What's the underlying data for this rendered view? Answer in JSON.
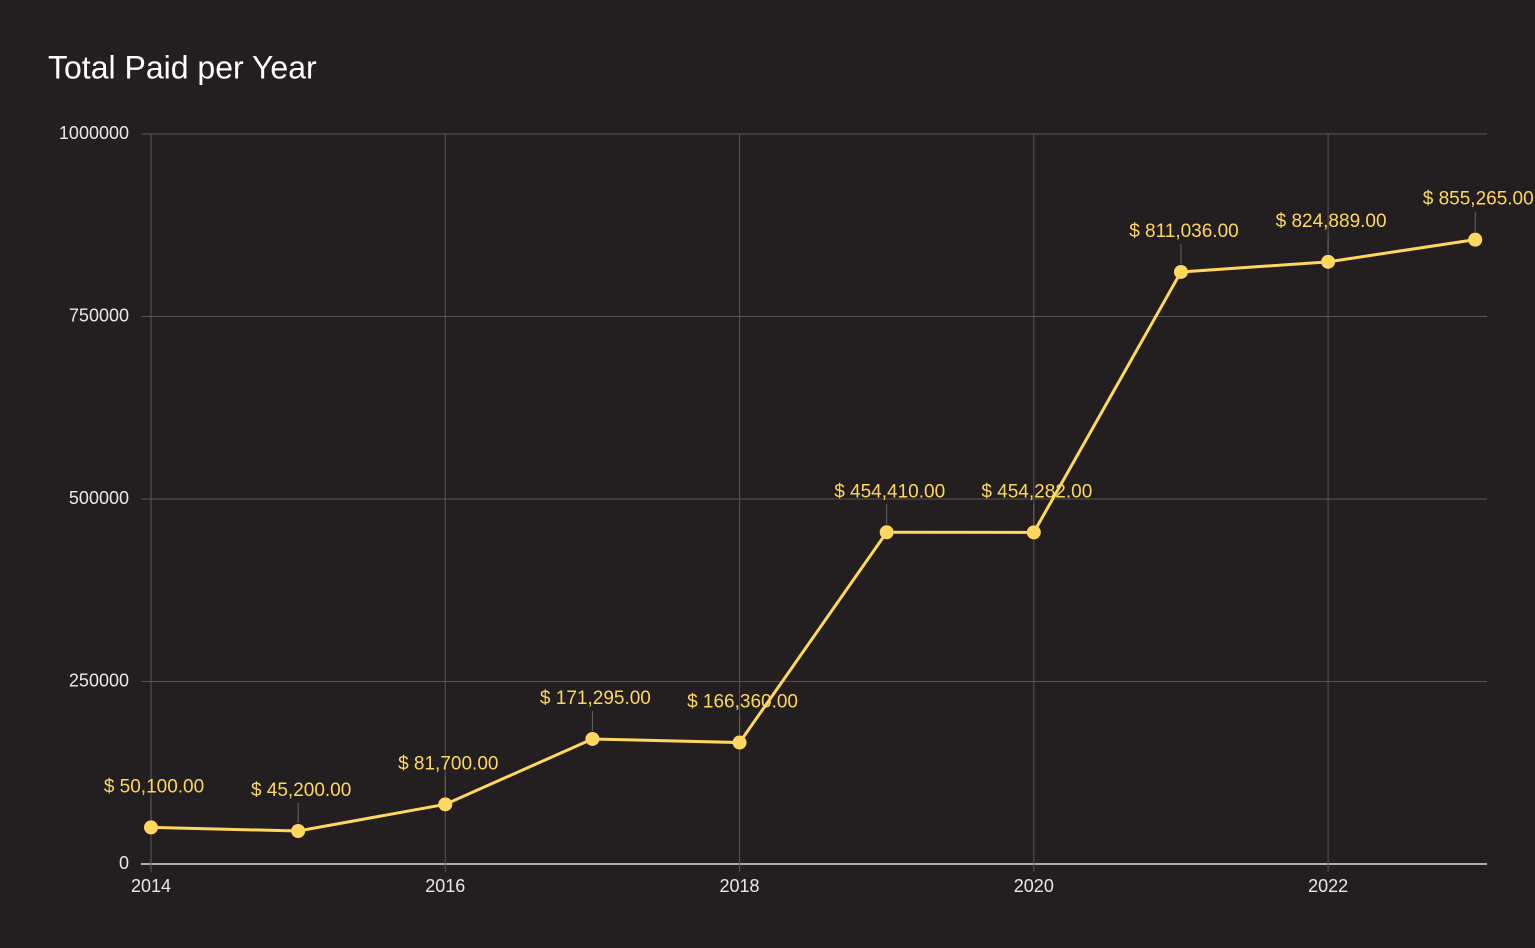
{
  "chart_data": {
    "type": "line",
    "title": "Total Paid per Year",
    "x": [
      2014,
      2015,
      2016,
      2017,
      2018,
      2019,
      2020,
      2021,
      2022,
      2023
    ],
    "values": [
      50100,
      45200,
      81700,
      171295,
      166360,
      454410,
      454282,
      811036,
      824889,
      855265
    ],
    "value_labels": [
      "$ 50,100.00",
      "$ 45,200.00",
      "$ 81,700.00",
      "$ 171,295.00",
      "$ 166,360.00",
      "$ 454,410.00",
      "$ 454,282.00",
      "$ 811,036.00",
      "$ 824,889.00",
      "$ 855,265.00"
    ],
    "color": "#ffd75e",
    "xlim": [
      2014,
      2023.08
    ],
    "xticks": [
      2014,
      2016,
      2018,
      2020,
      2022
    ],
    "ylim": [
      0,
      1000000
    ],
    "yticks": [
      0,
      250000,
      500000,
      750000,
      1000000
    ],
    "grid": true
  }
}
